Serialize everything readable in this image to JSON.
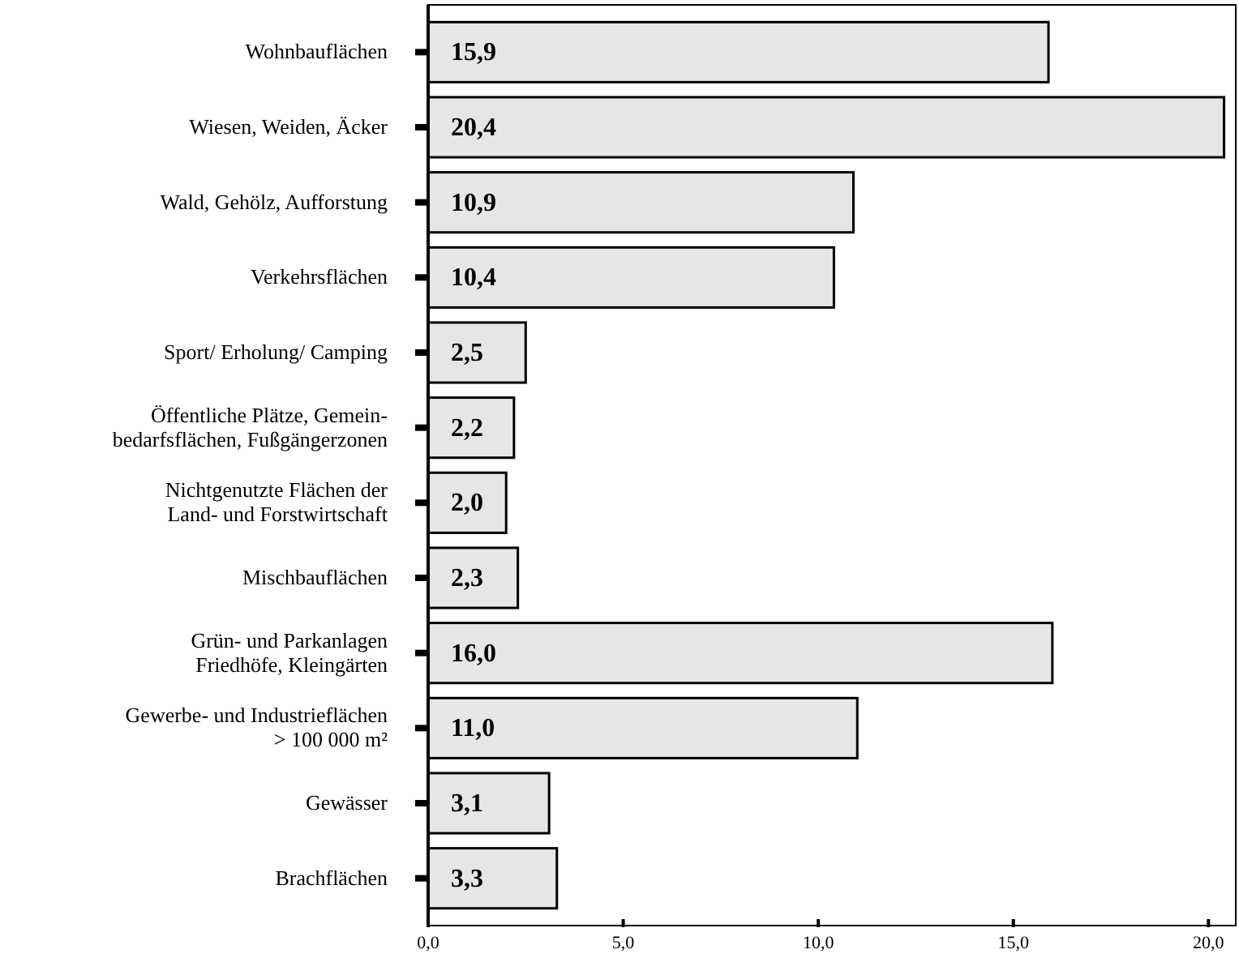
{
  "chart_data": {
    "type": "bar",
    "orientation": "horizontal",
    "categories": [
      "Wohnbauflächen",
      "Wiesen, Weiden, Äcker",
      "Wald, Gehölz, Aufforstung",
      "Verkehrsflächen",
      "Sport/ Erholung/ Camping",
      "Öffentliche Plätze, Gemein-\nbedarfsflächen, Fußgängerzonen",
      "Nichtgenutzte Flächen der\nLand- und Forstwirtschaft",
      "Mischbauflächen",
      "Grün- und Parkanlagen\nFriedhöfe, Kleingärten",
      "Gewerbe- und Industrieflächen\n> 100 000 m²",
      "Gewässer",
      "Brachflächen"
    ],
    "values": [
      15.9,
      20.4,
      10.9,
      10.4,
      2.5,
      2.2,
      2.0,
      2.3,
      16.0,
      11.0,
      3.1,
      3.3
    ],
    "value_labels": [
      "15,9",
      "20,4",
      "10,9",
      "10,4",
      "2,5",
      "2,2",
      "2,0",
      "2,3",
      "16,0",
      "11,0",
      "3,1",
      "3,3"
    ],
    "color": "#e6e6e6",
    "xlim": [
      0,
      20.7
    ],
    "xticks": [
      {
        "value": 0,
        "label": "0,0"
      },
      {
        "value": 5,
        "label": "5,0"
      },
      {
        "value": 10,
        "label": "10,0"
      },
      {
        "value": 15,
        "label": "15,0"
      },
      {
        "value": 20,
        "label": "20,0"
      }
    ],
    "grid": false
  }
}
